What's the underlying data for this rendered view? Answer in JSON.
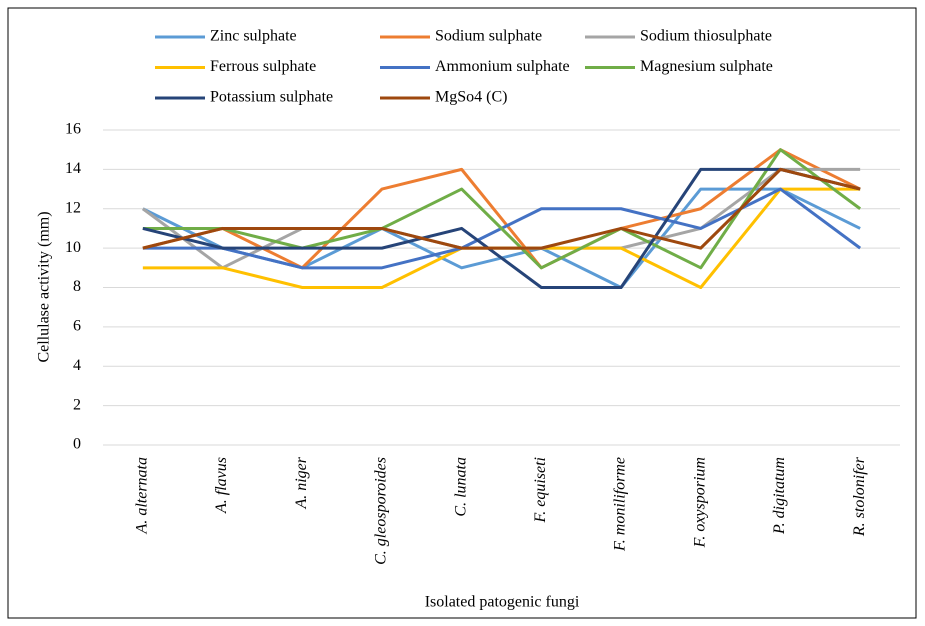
{
  "chart_data": {
    "type": "line",
    "y_label": "Cellulase activity (mm)",
    "x_label": "Isolated patogenic fungi",
    "categories": [
      "A. alternata",
      "A. flavus",
      "A. niger",
      "C. gleosporoides",
      "C. lunata",
      "F. equiseti",
      "F. moniliforme",
      "F. oxysporium",
      "P. digitatum",
      "R. stolonifer"
    ],
    "series": [
      {
        "name": "Zinc sulphate",
        "color": "#5b9bd5",
        "values": [
          12,
          10,
          9,
          11,
          9,
          10,
          8,
          13,
          13,
          11
        ]
      },
      {
        "name": "Sodium sulphate",
        "color": "#ed7d31",
        "values": [
          10,
          11,
          9,
          13,
          14,
          9,
          11,
          12,
          15,
          13
        ]
      },
      {
        "name": "Sodium thiosulphate",
        "color": "#a5a5a5",
        "values": [
          12,
          9,
          11,
          11,
          10,
          10,
          10,
          11,
          14,
          14
        ]
      },
      {
        "name": "Ferrous sulphate",
        "color": "#ffc000",
        "values": [
          9,
          9,
          8,
          8,
          10,
          10,
          10,
          8,
          13,
          13
        ]
      },
      {
        "name": "Ammonium sulphate",
        "color": "#4472c4",
        "values": [
          10,
          10,
          9,
          9,
          10,
          12,
          12,
          11,
          13,
          10
        ]
      },
      {
        "name": "Magnesium sulphate",
        "color": "#70ad47",
        "values": [
          11,
          11,
          10,
          11,
          13,
          9,
          11,
          9,
          15,
          12
        ]
      },
      {
        "name": "Potassium sulphate",
        "color": "#264478",
        "values": [
          11,
          10,
          10,
          10,
          11,
          8,
          8,
          14,
          14,
          13
        ]
      },
      {
        "name": "MgSo4 (C)",
        "color": "#9e480e",
        "values": [
          10,
          11,
          11,
          11,
          10,
          10,
          11,
          10,
          14,
          13
        ]
      }
    ],
    "ylim": [
      0,
      16
    ],
    "yticks": [
      0,
      2,
      4,
      6,
      8,
      10,
      12,
      14,
      16
    ],
    "grid": true,
    "legend": "top"
  }
}
